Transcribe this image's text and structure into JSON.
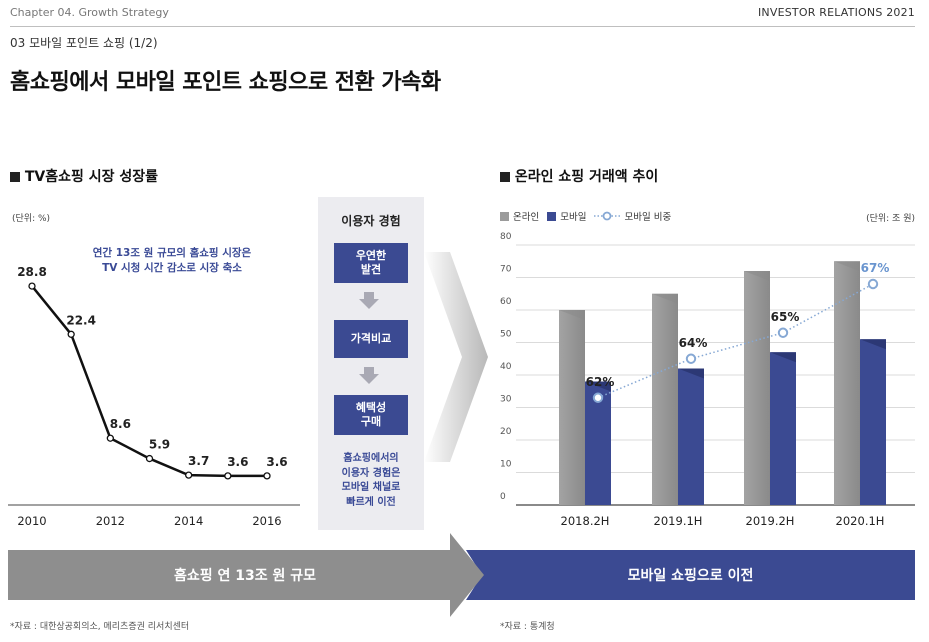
{
  "header": {
    "chapter": "Chapter 04. Growth Strategy",
    "brand": "INVESTOR RELATIONS 2021",
    "section": "03   모바일 포인트 쇼핑 (1/2)",
    "title": "홈쇼핑에서 모바일 포인트 쇼핑으로 전환 가속화"
  },
  "left_panel": {
    "heading": "TV홈쇼핑 시장 성장률",
    "unit": "(단위: %)",
    "callout_line1": "연간 13조 원 규모의 홈쇼핑 시장은",
    "callout_line2": "TV 시청 시간 감소로 시장 축소",
    "source": "*자료 : 대한상공회의소, 메리츠증권 리서치센터"
  },
  "middle_panel": {
    "title": "이용자 경험",
    "steps": [
      "우연한\n발견",
      "가격비교",
      "혜택성\n구매"
    ],
    "note_lines": [
      "홈쇼핑에서의",
      "이용자 경험은",
      "모바일 채널로",
      "빠르게 이전"
    ]
  },
  "right_panel": {
    "heading": "온라인 쇼핑 거래액 추이",
    "unit": "(단위: 조 원)",
    "legend": {
      "online": "온라인",
      "mobile": "모바일",
      "ratio": "모바일 비중"
    },
    "source": "*자료 : 통계청"
  },
  "banners": {
    "left": "홈쇼핑 연 13조 원 규모",
    "right": "모바일 쇼핑으로 이전"
  },
  "colors": {
    "navy": "#3b4a92",
    "grey_bar": "#9b9b9b",
    "dotted_line": "#86a8d4",
    "pct_label": "#6a95cf",
    "line": "#111111"
  },
  "chart_data": [
    {
      "type": "line",
      "x_ticks": [
        "2010",
        "2012",
        "2014",
        "2016"
      ],
      "xlim": [
        2010,
        2016
      ],
      "points": [
        {
          "x": 2010,
          "y": 28.8
        },
        {
          "x": 2011,
          "y": 22.4
        },
        {
          "x": 2012,
          "y": 8.6
        },
        {
          "x": 2013,
          "y": 5.9
        },
        {
          "x": 2014,
          "y": 3.7
        },
        {
          "x": 2015,
          "y": 3.6
        },
        {
          "x": 2016,
          "y": 3.6
        }
      ],
      "labels": [
        "28.8",
        "22.4",
        "8.6",
        "5.9",
        "3.7",
        "3.6",
        "3.6"
      ],
      "ylim": [
        0,
        32
      ]
    },
    {
      "type": "bar",
      "categories": [
        "2018.2H",
        "2019.1H",
        "2019.2H",
        "2020.1H"
      ],
      "series": [
        {
          "name": "온라인",
          "values": [
            60,
            65,
            72,
            75
          ]
        },
        {
          "name": "모바일",
          "values": [
            38,
            42,
            47,
            51
          ]
        },
        {
          "name": "모바일 비중",
          "values": [
            62,
            64,
            65,
            67
          ]
        }
      ],
      "ratio_labels": [
        "62%",
        "64%",
        "65%",
        "67%"
      ],
      "ratio_plot_heights": [
        33,
        45,
        53,
        68
      ],
      "y_ticks": [
        "0",
        "10",
        "20",
        "30",
        "40",
        "50",
        "60",
        "70",
        "80"
      ],
      "ylim": [
        0,
        80
      ],
      "grid": true
    }
  ]
}
